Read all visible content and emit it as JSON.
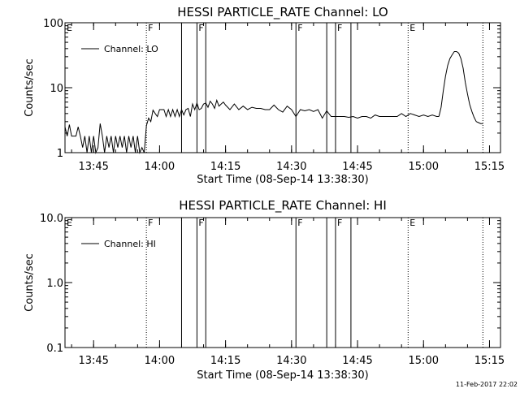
{
  "footer": {
    "timestamp": "11-Feb-2017 22:02"
  },
  "chart_data": [
    {
      "type": "line",
      "title": "HESSI PARTICLE_RATE Channel: LO",
      "xlabel": "Start Time (08-Sep-14 13:38:30)",
      "ylabel": "Counts/sec",
      "yscale": "log",
      "xlim": [
        "13:38:30",
        "15:17:30"
      ],
      "ylim": [
        1,
        100
      ],
      "x_ticks": [
        "13:45",
        "14:00",
        "14:15",
        "14:30",
        "14:45",
        "15:00",
        "15:15"
      ],
      "y_ticks": [
        "1",
        "10",
        "100"
      ],
      "legend": {
        "label": "Channel: LO",
        "placement": "top-left"
      },
      "markers": [
        {
          "time": "13:57:00",
          "style": "dotted",
          "label": "F"
        },
        {
          "time": "14:05:00",
          "style": "solid",
          "label": ""
        },
        {
          "time": "14:08:30",
          "style": "solid",
          "label": "F"
        },
        {
          "time": "14:10:30",
          "style": "solid",
          "label": ""
        },
        {
          "time": "14:31:00",
          "style": "solid",
          "label": "F"
        },
        {
          "time": "14:38:00",
          "style": "solid",
          "label": ""
        },
        {
          "time": "14:40:00",
          "style": "solid",
          "label": "F"
        },
        {
          "time": "14:43:30",
          "style": "solid",
          "label": ""
        },
        {
          "time": "14:56:30",
          "style": "dotted",
          "label": "E"
        },
        {
          "time": "15:13:30",
          "style": "dotted",
          "label": ""
        }
      ],
      "edge_label": "E",
      "series": [
        {
          "name": "Channel: LO",
          "segments": [
            {
              "x": [
                "13:38:30",
                "13:39:00",
                "13:39:30",
                "13:40:00",
                "13:40:30",
                "13:41:00",
                "13:41:30",
                "13:42:00",
                "13:42:30",
                "13:43:00",
                "13:43:30",
                "13:44:00",
                "13:44:30",
                "13:45:00",
                "13:45:30",
                "13:46:00",
                "13:46:30",
                "13:47:00",
                "13:47:30",
                "13:48:00",
                "13:48:30",
                "13:49:00",
                "13:49:30",
                "13:50:00",
                "13:50:30",
                "13:51:00",
                "13:51:30",
                "13:52:00",
                "13:52:30",
                "13:53:00",
                "13:53:30",
                "13:54:00",
                "13:54:30",
                "13:55:00",
                "13:55:30",
                "13:56:00",
                "13:56:30",
                "13:57:00",
                "13:57:30",
                "13:58:00",
                "13:58:30",
                "13:59:00",
                "13:59:30",
                "14:00:00",
                "14:00:30",
                "14:01:00",
                "14:01:30",
                "14:02:00",
                "14:02:30",
                "14:03:00",
                "14:03:30",
                "14:04:00",
                "14:04:30",
                "14:05:00",
                "14:05:30",
                "14:06:00",
                "14:06:30",
                "14:07:00",
                "14:07:30",
                "14:08:00",
                "14:08:30",
                "14:09:00",
                "14:09:30",
                "14:10:00",
                "14:10:30",
                "14:11:00",
                "14:11:30",
                "14:12:00",
                "14:12:30",
                "14:13:00",
                "14:13:30",
                "14:14:00",
                "14:14:30",
                "14:15:00",
                "14:16:00",
                "14:17:00",
                "14:18:00",
                "14:19:00",
                "14:20:00",
                "14:21:00",
                "14:22:00",
                "14:23:00",
                "14:24:00",
                "14:25:00",
                "14:26:00",
                "14:27:00",
                "14:28:00",
                "14:29:00",
                "14:30:00",
                "14:31:00",
                "14:32:00",
                "14:33:00",
                "14:34:00",
                "14:35:00",
                "14:36:00",
                "14:37:00",
                "14:38:00",
                "14:39:00",
                "14:40:00",
                "14:41:00",
                "14:42:00",
                "14:43:00",
                "14:44:00",
                "14:45:00",
                "14:46:00",
                "14:47:00",
                "14:48:00",
                "14:49:00",
                "14:50:00",
                "14:51:00",
                "14:52:00",
                "14:53:00",
                "14:54:00",
                "14:55:00",
                "14:56:00",
                "14:57:00",
                "14:58:00",
                "14:59:00",
                "15:00:00",
                "15:01:00",
                "15:02:00",
                "15:03:00",
                "15:03:30"
              ],
              "y": [
                2.5,
                1.8,
                2.7,
                1.8,
                1.8,
                1.8,
                2.5,
                1.8,
                1.2,
                1.8,
                1,
                1.8,
                1,
                1.8,
                1,
                1.2,
                2.8,
                1.8,
                1,
                1.8,
                1.2,
                1.8,
                1,
                1.8,
                1.2,
                1.8,
                1.2,
                1.8,
                1,
                1.8,
                1.2,
                1.8,
                1,
                1.8,
                1,
                1.2,
                1,
                2.6,
                3.4,
                3,
                4.5,
                4,
                3.6,
                4.6,
                4.6,
                4.6,
                3.6,
                4.6,
                3.6,
                4.6,
                3.6,
                4.6,
                3.6,
                4.6,
                3.8,
                4.6,
                4.8,
                3.6,
                5.6,
                4.6,
                5.8,
                4.6,
                4.8,
                5.6,
                5.8,
                5,
                6.2,
                5.6,
                4.8,
                6.4,
                5.2,
                5.6,
                6,
                5.4,
                4.6,
                5.6,
                4.6,
                5.2,
                4.6,
                5,
                4.8,
                4.8,
                4.6,
                4.6,
                5.4,
                4.6,
                4.2,
                5.2,
                4.6,
                3.6,
                4.6,
                4.4,
                4.6,
                4.3,
                4.6,
                3.4,
                4.4,
                3.6,
                3.6,
                3.6,
                3.6,
                3.5,
                3.6,
                3.4,
                3.6,
                3.6,
                3.4,
                3.8,
                3.6,
                3.6,
                3.6,
                3.6,
                3.6,
                4,
                3.6,
                4,
                3.8,
                3.6,
                3.8,
                3.6,
                3.8,
                3.6,
                3.6
              ]
            },
            {
              "x": [
                "15:03:30",
                "15:04:00",
                "15:04:30",
                "15:05:00",
                "15:05:30",
                "15:06:00",
                "15:06:30",
                "15:07:00",
                "15:07:30",
                "15:08:00",
                "15:08:30",
                "15:09:00",
                "15:09:30",
                "15:10:00",
                "15:10:30",
                "15:11:00",
                "15:11:30",
                "15:12:00",
                "15:12:30",
                "15:13:00",
                "15:13:30"
              ],
              "y": [
                3.6,
                5,
                9,
                15,
                22,
                28,
                32,
                36,
                36,
                34,
                28,
                20,
                12,
                8,
                5.5,
                4.3,
                3.5,
                3,
                2.9,
                2.8,
                2.8
              ]
            }
          ]
        }
      ]
    },
    {
      "type": "line",
      "title": "HESSI PARTICLE_RATE Channel: HI",
      "xlabel": "Start Time (08-Sep-14 13:38:30)",
      "ylabel": "Counts/sec",
      "yscale": "log",
      "xlim": [
        "13:38:30",
        "15:17:30"
      ],
      "ylim": [
        0.1,
        10
      ],
      "x_ticks": [
        "13:45",
        "14:00",
        "14:15",
        "14:30",
        "14:45",
        "15:00",
        "15:15"
      ],
      "y_ticks": [
        "0.1",
        "1.0",
        "10.0"
      ],
      "legend": {
        "label": "Channel: HI",
        "placement": "top-left"
      },
      "markers": [
        {
          "time": "13:57:00",
          "style": "dotted",
          "label": "F"
        },
        {
          "time": "14:05:00",
          "style": "solid",
          "label": ""
        },
        {
          "time": "14:08:30",
          "style": "solid",
          "label": "F"
        },
        {
          "time": "14:10:30",
          "style": "solid",
          "label": ""
        },
        {
          "time": "14:31:00",
          "style": "solid",
          "label": "F"
        },
        {
          "time": "14:38:00",
          "style": "solid",
          "label": ""
        },
        {
          "time": "14:40:00",
          "style": "solid",
          "label": "F"
        },
        {
          "time": "14:43:30",
          "style": "solid",
          "label": ""
        },
        {
          "time": "14:56:30",
          "style": "dotted",
          "label": "E"
        },
        {
          "time": "15:13:30",
          "style": "dotted",
          "label": ""
        }
      ],
      "edge_label": "E",
      "series": [
        {
          "name": "Channel: HI",
          "segments": []
        }
      ]
    }
  ]
}
